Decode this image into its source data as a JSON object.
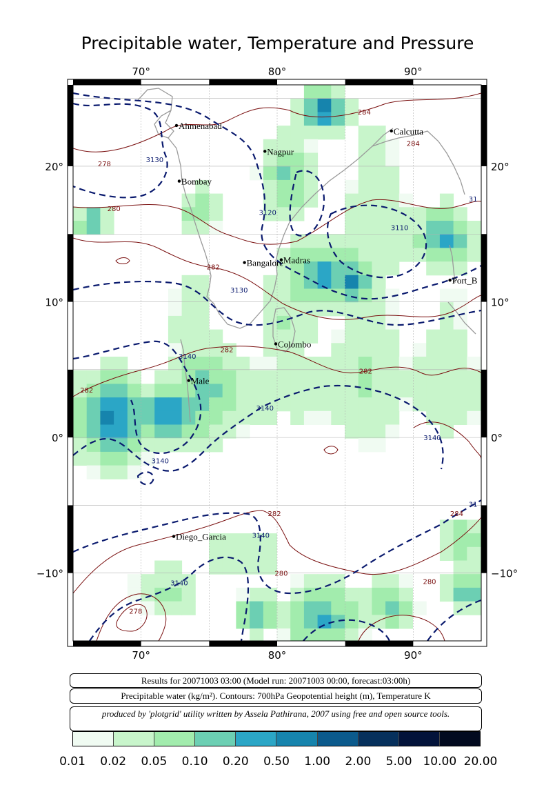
{
  "title": "Precipitable water, Temperature and Pressure",
  "map": {
    "lon_range": [
      65,
      95
    ],
    "lat_range": [
      -15,
      26
    ],
    "lon_ticks": [
      {
        "v": 70,
        "label": "70°"
      },
      {
        "v": 80,
        "label": "80°"
      },
      {
        "v": 90,
        "label": "90°"
      }
    ],
    "lat_ticks": [
      {
        "v": 20,
        "label": "20°"
      },
      {
        "v": 10,
        "label": "10°"
      },
      {
        "v": 0,
        "label": "0°"
      },
      {
        "v": -10,
        "label": "−10°"
      }
    ],
    "grid": true,
    "cities": [
      {
        "name": "Ahmenabad",
        "lon": 72.6,
        "lat": 23.0
      },
      {
        "name": "Calcutta",
        "lon": 88.4,
        "lat": 22.6
      },
      {
        "name": "Nagpur",
        "lon": 79.1,
        "lat": 21.1
      },
      {
        "name": "Bombay",
        "lon": 72.8,
        "lat": 18.9
      },
      {
        "name": "Bangalore",
        "lon": 77.6,
        "lat": 12.9
      },
      {
        "name": "Madras",
        "lon": 80.3,
        "lat": 13.1
      },
      {
        "name": "Port_B",
        "lon": 92.7,
        "lat": 11.6
      },
      {
        "name": "Colombo",
        "lon": 79.9,
        "lat": 6.9
      },
      {
        "name": "Male",
        "lon": 73.5,
        "lat": 4.2
      },
      {
        "name": "Diego_Garcia",
        "lon": 72.4,
        "lat": -7.3
      }
    ],
    "temperature_labels": [
      {
        "text": "278",
        "lon": 67.3,
        "lat": 20.0
      },
      {
        "text": "280",
        "lon": 68.0,
        "lat": 16.7
      },
      {
        "text": "282",
        "lon": 75.3,
        "lat": 12.4
      },
      {
        "text": "282",
        "lon": 76.3,
        "lat": 6.3
      },
      {
        "text": "282",
        "lon": 86.5,
        "lat": 4.7
      },
      {
        "text": "282",
        "lon": 66.0,
        "lat": 3.3
      },
      {
        "text": "282",
        "lon": 79.8,
        "lat": -5.8
      },
      {
        "text": "284",
        "lon": 86.4,
        "lat": 23.8
      },
      {
        "text": "284",
        "lon": 90.0,
        "lat": 21.5
      },
      {
        "text": "284",
        "lon": 93.2,
        "lat": -5.8
      },
      {
        "text": "280",
        "lon": 80.3,
        "lat": -10.2
      },
      {
        "text": "280",
        "lon": 91.2,
        "lat": -10.8
      },
      {
        "text": "278",
        "lon": 69.6,
        "lat": -13.0
      }
    ],
    "height_labels": [
      {
        "text": "3130",
        "lon": 71.0,
        "lat": 20.3
      },
      {
        "text": "3120",
        "lon": 79.3,
        "lat": 16.4
      },
      {
        "text": "3110",
        "lon": 89.0,
        "lat": 15.3
      },
      {
        "text": "3130",
        "lon": 77.2,
        "lat": 10.7
      },
      {
        "text": "3140",
        "lon": 73.4,
        "lat": 5.8
      },
      {
        "text": "3140",
        "lon": 79.1,
        "lat": 2.0
      },
      {
        "text": "3140",
        "lon": 71.4,
        "lat": -1.9
      },
      {
        "text": "3140",
        "lon": 91.4,
        "lat": -0.2
      },
      {
        "text": "3140",
        "lon": 78.8,
        "lat": -7.4
      },
      {
        "text": "3140",
        "lon": 72.8,
        "lat": -10.9
      },
      {
        "text": "31",
        "lon": 94.4,
        "lat": 17.4
      },
      {
        "text": "31",
        "lon": 94.4,
        "lat": -5.1
      }
    ]
  },
  "notes": {
    "results": "Results for 20071003 03:00 (Model run: 20071003 00:00, forecast:03:00h)",
    "legend_text": "Precipitable water (kg/m²).  Contours: 700hPa Geopotential height (m), Temperature K",
    "credit": "produced by 'plotgrid' utility written by Assela Pathirana, 2007 using free and open source tools."
  },
  "colorbar": {
    "colors": [
      "#f0fbf2",
      "#c8f5cb",
      "#a2ecad",
      "#6ccfb3",
      "#2ba6c6",
      "#1684ad",
      "#0b5a8c",
      "#06305c",
      "#03133a",
      "#020a1f"
    ],
    "labels": [
      "0.01",
      "0.02",
      "0.05",
      "0.10",
      "0.20",
      "0.50",
      "1.00",
      "2.00",
      "5.00",
      "10.00",
      "20.00"
    ]
  },
  "colors": {
    "temperature_contour": "#7a1010",
    "height_contour": "#0a1a6e",
    "coastline": "#9a9a9a",
    "grid": "#b0b0b0"
  }
}
